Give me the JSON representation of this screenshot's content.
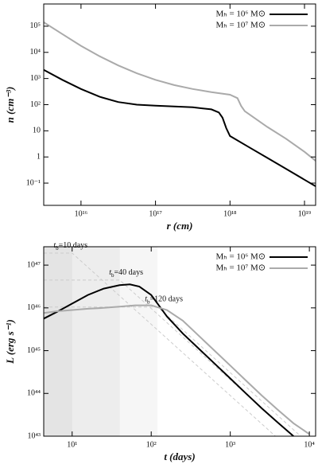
{
  "chart_data": [
    {
      "type": "line",
      "xscale": "log",
      "yscale": "log",
      "legend": "upper right",
      "x_label": "r (cm)",
      "y_label": "n (cm⁻³)",
      "xlim": [
        3160000000000000.0,
        1.41e+19
      ],
      "ylim": [
        0.0141,
        708000
      ],
      "xticks": [
        {
          "value": 1e+16,
          "label": "10¹⁶"
        },
        {
          "value": 1e+17,
          "label": "10¹⁷"
        },
        {
          "value": 1e+18,
          "label": "10¹⁸"
        },
        {
          "value": 1e+19,
          "label": "10¹⁹"
        }
      ],
      "yticks": [
        {
          "value": 0.1,
          "label": "10⁻¹"
        },
        1,
        10,
        {
          "value": 100,
          "label": "10²"
        },
        {
          "value": 1000,
          "label": "10³"
        },
        {
          "value": 10000,
          "label": "10⁴"
        },
        {
          "value": 100000,
          "label": "10⁵"
        }
      ],
      "series": [
        {
          "name": "Mₕ = 10⁶ M⊙",
          "color": "#000000",
          "x": [
            3160000000000000.0,
            5620000000000000.0,
            1e+16,
            1.78e+16,
            3.16e+16,
            5.62e+16,
            1e+17,
            1.78e+17,
            3.16e+17,
            5.62e+17,
            7.08e+17,
            7.94e+17,
            8.91e+17,
            1e+18,
            1.78e+18,
            3.16e+18,
            5.62e+18,
            1e+19,
            1.41e+19
          ],
          "values": [
            2140,
            891,
            398,
            200,
            126,
            100,
            91.2,
            85.1,
            79.4,
            66.1,
            50.1,
            31.6,
            12.6,
            6.31,
            2.4,
            0.933,
            0.355,
            0.135,
            0.0759
          ]
        },
        {
          "name": "Mₕ = 10⁷ M⊙",
          "color": "#aaaaaa",
          "x": [
            3160000000000000.0,
            5620000000000000.0,
            1e+16,
            1.78e+16,
            3.16e+16,
            5.62e+16,
            1e+17,
            1.78e+17,
            3.16e+17,
            5.62e+17,
            1e+18,
            1.26e+18,
            1.41e+18,
            1.58e+18,
            3.16e+18,
            5.62e+18,
            1e+19,
            1.41e+19
          ],
          "values": [
            141000,
            50100,
            17800,
            7080,
            3160,
            1580,
            891,
            562,
            398,
            302,
            240,
            178,
            89.1,
            56.2,
            14.1,
            5.01,
            1.58,
            0.708
          ]
        }
      ]
    },
    {
      "type": "line",
      "xscale": "log",
      "yscale": "log",
      "legend": "upper right",
      "x_label": "t (days)",
      "y_label": "L (erg s⁻¹)",
      "xlim": [
        4.37,
        12000
      ],
      "ylim": [
        1e+43,
        2.69e+47
      ],
      "xticks": [
        {
          "value": 10,
          "label": "10¹"
        },
        {
          "value": 100,
          "label": "10²"
        },
        {
          "value": 1000,
          "label": "10³"
        },
        {
          "value": 10000,
          "label": "10⁴"
        }
      ],
      "yticks": [
        {
          "value": 1e+43,
          "label": "10⁴³"
        },
        {
          "value": 1e+44,
          "label": "10⁴⁴"
        },
        {
          "value": 1e+45,
          "label": "10⁴⁵"
        },
        {
          "value": 1e+46,
          "label": "10⁴⁶"
        },
        {
          "value": 1e+47,
          "label": "10⁴⁷"
        }
      ],
      "guides": [
        {
          "label": {
            "symbol": "t",
            "subscript": "b",
            "text": "=10 days"
          },
          "color": "#cccccc",
          "x": [
            4.37,
            10,
            3720
          ],
          "values": [
            1.91e+47,
            1.91e+47,
            1e+43
          ]
        },
        {
          "label": {
            "symbol": "t",
            "subscript": "b",
            "text": "=40 days"
          },
          "color": "#cccccc",
          "x": [
            4.37,
            40,
            6170
          ],
          "values": [
            4.47e+46,
            4.47e+46,
            1e+43
          ]
        },
        {
          "label": {
            "symbol": "t",
            "subscript": "b",
            "text": "=120 days"
          },
          "color": "#cccccc",
          "x": [
            4.37,
            120,
            7760
          ],
          "values": [
            1.05e+46,
            1.05e+46,
            1e+43
          ]
        }
      ],
      "series": [
        {
          "name": "Mₕ = 10⁶ M⊙",
          "color": "#000000",
          "x": [
            4.37,
            6.31,
            10,
            15.8,
            25.1,
            39.8,
            53.7,
            70.8,
            100,
            126,
            158,
            251,
            398,
            631,
            1000,
            1580,
            2510,
            3980,
            6310
          ],
          "values": [
            5.62e+45,
            7.94e+45,
            1.26e+46,
            2e+46,
            2.82e+46,
            3.39e+46,
            3.55e+46,
            3.16e+46,
            2e+46,
            1.12e+46,
            6.31e+45,
            2.51e+45,
            1.12e+45,
            5.01e+44,
            2.24e+44,
            1e+44,
            4.47e+43,
            2.09e+43,
            1e+43
          ]
        },
        {
          "name": "Mₕ = 10⁷ M⊙",
          "color": "#aaaaaa",
          "x": [
            4.37,
            6.31,
            10,
            15.8,
            25.1,
            39.8,
            63.1,
            100,
            158,
            251,
            398,
            631,
            1000,
            1580,
            2510,
            3980,
            6310,
            10000
          ],
          "values": [
            7.59e+45,
            8.32e+45,
            8.91e+45,
            9.55e+45,
            1e+46,
            1.07e+46,
            1.15e+46,
            1.15e+46,
            8.91e+45,
            5.01e+45,
            2.24e+45,
            1e+45,
            4.47e+44,
            2e+44,
            8.91e+43,
            4.17e+43,
            2e+43,
            1.12e+43
          ]
        }
      ]
    }
  ]
}
